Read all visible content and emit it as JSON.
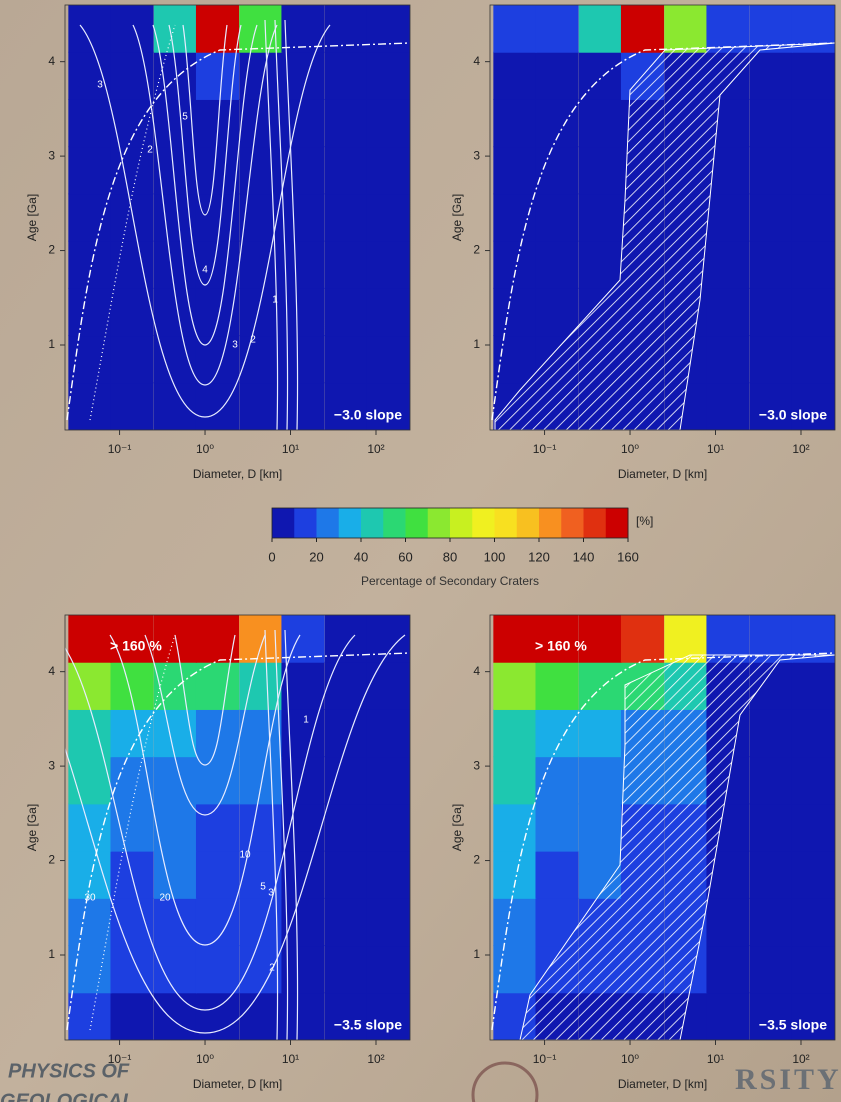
{
  "chart_data": [
    {
      "type": "heatmap",
      "xscale": "log",
      "x": [
        0.045,
        0.14,
        0.45,
        1.4,
        4.5,
        14,
        45,
        140
      ],
      "y": [
        0.35,
        0.85,
        1.35,
        1.85,
        2.35,
        2.85,
        3.35,
        3.85,
        4.35
      ],
      "z": [
        [
          2,
          1,
          2,
          3,
          2,
          1,
          1,
          0
        ],
        [
          2,
          2,
          3,
          3,
          2,
          1,
          1,
          0
        ],
        [
          2,
          2,
          3,
          4,
          3,
          1,
          1,
          0
        ],
        [
          2,
          3,
          4,
          4,
          3,
          1,
          1,
          0
        ],
        [
          2,
          3,
          4,
          5,
          3,
          1,
          1,
          0
        ],
        [
          3,
          3,
          5,
          5,
          4,
          2,
          1,
          0
        ],
        [
          3,
          3,
          5,
          6,
          5,
          2,
          1,
          0
        ],
        [
          3,
          4,
          6,
          12,
          8,
          3,
          1,
          0
        ],
        [
          5,
          8,
          40,
          150,
          60,
          8,
          2,
          1
        ]
      ],
      "xlim": [
        0.023,
        250
      ],
      "ylim": [
        0.1,
        4.6
      ],
      "xticks": [
        {
          "value": 0.1,
          "label": "10⁻¹"
        },
        {
          "value": 1,
          "label": "10⁰"
        },
        {
          "value": 10,
          "label": "10¹"
        },
        {
          "value": 100,
          "label": "10²"
        }
      ],
      "yticks": [
        1,
        2,
        3,
        4
      ],
      "xlabel": "Diameter, D [km]",
      "ylabel": "Age [Ga]",
      "slope_label": "−3.0 slope",
      "contour_labels": [
        3,
        5,
        2,
        4,
        3,
        2,
        1
      ]
    },
    {
      "type": "heatmap",
      "xscale": "log",
      "x": [
        0.045,
        0.14,
        0.45,
        1.4,
        4.5,
        14,
        45,
        140
      ],
      "y": [
        0.35,
        0.85,
        1.35,
        1.85,
        2.35,
        2.85,
        3.35,
        3.85,
        4.35
      ],
      "z": [
        [
          2,
          1,
          2,
          3,
          2,
          1,
          1,
          0
        ],
        [
          2,
          2,
          3,
          3,
          2,
          1,
          1,
          0
        ],
        [
          2,
          2,
          3,
          4,
          3,
          1,
          1,
          0
        ],
        [
          2,
          3,
          4,
          4,
          3,
          1,
          1,
          0
        ],
        [
          2,
          3,
          4,
          5,
          3,
          1,
          1,
          0
        ],
        [
          3,
          3,
          5,
          5,
          4,
          2,
          1,
          0
        ],
        [
          3,
          3,
          5,
          6,
          5,
          2,
          1,
          0
        ],
        [
          3,
          4,
          6,
          12,
          8,
          3,
          1,
          0
        ],
        [
          15,
          15,
          40,
          150,
          70,
          15,
          15,
          15
        ]
      ],
      "xlim": [
        0.023,
        250
      ],
      "ylim": [
        0.1,
        4.6
      ],
      "xticks": [
        {
          "value": 0.1,
          "label": "10⁻¹"
        },
        {
          "value": 1,
          "label": "10⁰"
        },
        {
          "value": 10,
          "label": "10¹"
        },
        {
          "value": 100,
          "label": "10²"
        }
      ],
      "yticks": [
        1,
        2,
        3,
        4
      ],
      "xlabel": "Diameter, D [km]",
      "ylabel": "Age [Ga]",
      "slope_label": "−3.0 slope",
      "hatched": true
    },
    {
      "type": "heatmap",
      "xscale": "log",
      "x": [
        0.045,
        0.14,
        0.45,
        1.4,
        4.5,
        14,
        45,
        140
      ],
      "y": [
        0.35,
        0.85,
        1.35,
        1.85,
        2.35,
        2.85,
        3.35,
        3.85,
        4.35
      ],
      "z": [
        [
          12,
          8,
          8,
          7,
          7,
          3,
          1,
          1
        ],
        [
          20,
          12,
          12,
          10,
          10,
          4,
          2,
          1
        ],
        [
          25,
          15,
          15,
          12,
          12,
          4,
          2,
          1
        ],
        [
          30,
          18,
          20,
          14,
          14,
          5,
          2,
          1
        ],
        [
          35,
          20,
          22,
          15,
          15,
          5,
          2,
          1
        ],
        [
          40,
          25,
          25,
          20,
          20,
          6,
          2,
          1
        ],
        [
          45,
          30,
          30,
          25,
          25,
          7,
          3,
          2
        ],
        [
          70,
          60,
          55,
          55,
          45,
          8,
          3,
          2
        ],
        [
          165,
          165,
          165,
          165,
          120,
          10,
          5,
          3
        ]
      ],
      "xlim": [
        0.023,
        250
      ],
      "ylim": [
        0.1,
        4.6
      ],
      "xticks": [
        {
          "value": 0.1,
          "label": "10⁻¹"
        },
        {
          "value": 1,
          "label": "10⁰"
        },
        {
          "value": 10,
          "label": "10¹"
        },
        {
          "value": 100,
          "label": "10²"
        }
      ],
      "yticks": [
        1,
        2,
        3,
        4
      ],
      "xlabel": "Diameter, D [km]",
      "ylabel": "Age [Ga]",
      "slope_label": "−3.5 slope",
      "saturation_label": "> 160 %",
      "contour_labels": [
        30,
        20,
        10,
        5,
        3,
        2,
        1
      ]
    },
    {
      "type": "heatmap",
      "xscale": "log",
      "x": [
        0.045,
        0.14,
        0.45,
        1.4,
        4.5,
        14,
        45,
        140
      ],
      "y": [
        0.35,
        0.85,
        1.35,
        1.85,
        2.35,
        2.85,
        3.35,
        3.85,
        4.35
      ],
      "z": [
        [
          12,
          8,
          8,
          7,
          7,
          3,
          1,
          1
        ],
        [
          20,
          12,
          12,
          10,
          10,
          4,
          2,
          1
        ],
        [
          25,
          15,
          15,
          12,
          12,
          4,
          2,
          1
        ],
        [
          30,
          18,
          20,
          14,
          14,
          5,
          2,
          1
        ],
        [
          35,
          20,
          22,
          15,
          15,
          5,
          2,
          1
        ],
        [
          40,
          25,
          25,
          20,
          20,
          6,
          2,
          1
        ],
        [
          45,
          30,
          30,
          25,
          25,
          7,
          3,
          2
        ],
        [
          70,
          60,
          55,
          55,
          45,
          8,
          3,
          2
        ],
        [
          165,
          165,
          165,
          140,
          90,
          15,
          10,
          10
        ]
      ],
      "xlim": [
        0.023,
        250
      ],
      "ylim": [
        0.1,
        4.6
      ],
      "xticks": [
        {
          "value": 0.1,
          "label": "10⁻¹"
        },
        {
          "value": 1,
          "label": "10⁰"
        },
        {
          "value": 10,
          "label": "10¹"
        },
        {
          "value": 100,
          "label": "10²"
        }
      ],
      "yticks": [
        1,
        2,
        3,
        4
      ],
      "xlabel": "Diameter, D [km]",
      "ylabel": "Age [Ga]",
      "slope_label": "−3.5 slope",
      "saturation_label": "> 160 %",
      "hatched": true
    }
  ],
  "colorbar": {
    "levels": [
      0,
      10,
      20,
      30,
      40,
      50,
      60,
      70,
      80,
      90,
      100,
      110,
      120,
      130,
      140,
      150,
      160
    ],
    "colors": [
      "#0f17b0",
      "#1d3fe0",
      "#1e78e8",
      "#19aee8",
      "#1ec8b0",
      "#2bd873",
      "#40e040",
      "#8be830",
      "#c8f020",
      "#f0f020",
      "#f8e020",
      "#f8c020",
      "#f89020",
      "#f06020",
      "#e03010",
      "#cc0000"
    ],
    "ticks": [
      0,
      20,
      40,
      60,
      80,
      100,
      120,
      140,
      160
    ],
    "unit": "[%]",
    "label": "Percentage of Secondary Craters"
  },
  "watermarks": [
    "PHYSICS OF",
    "GEOLOGICAL",
    "RSITY"
  ]
}
